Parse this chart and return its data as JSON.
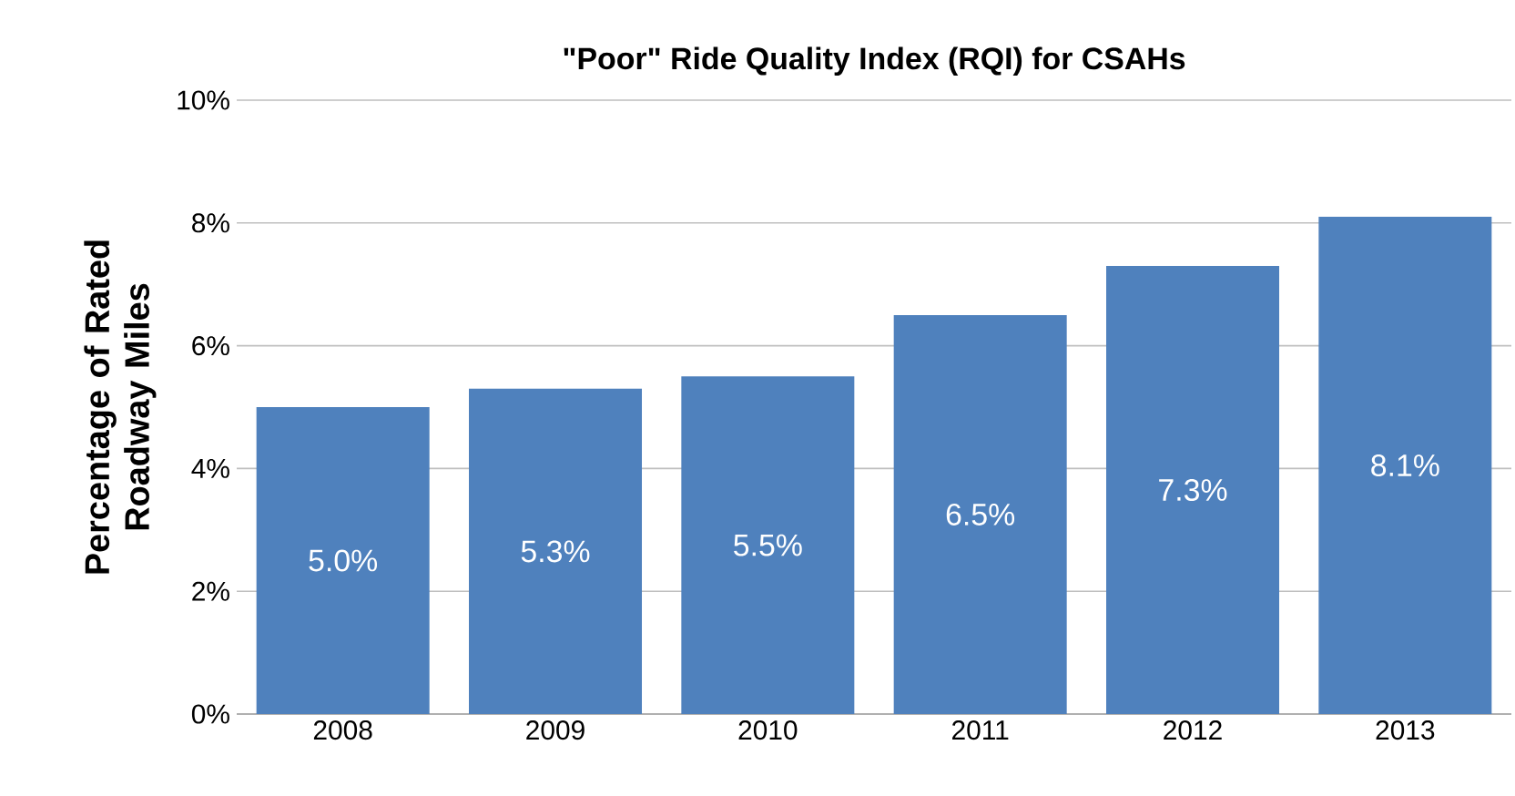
{
  "chart_data": {
    "type": "bar",
    "title": "\"Poor\" Ride Quality Index (RQI) for CSAHs",
    "ylabel": "Percentage of Rated Roadway Miles",
    "categories": [
      "2008",
      "2009",
      "2010",
      "2011",
      "2012",
      "2013"
    ],
    "values": [
      5.0,
      5.3,
      5.5,
      6.5,
      7.3,
      8.1
    ],
    "value_labels": [
      "5.0%",
      "5.3%",
      "5.5%",
      "6.5%",
      "7.3%",
      "8.1%"
    ],
    "color": "#4f81bd",
    "ylim": [
      0,
      10
    ],
    "yticks": [
      {
        "value": 0,
        "label": "0%"
      },
      {
        "value": 2,
        "label": "2%"
      },
      {
        "value": 4,
        "label": "4%"
      },
      {
        "value": 6,
        "label": "6%"
      },
      {
        "value": 8,
        "label": "8%"
      },
      {
        "value": 10,
        "label": "10%"
      }
    ],
    "grid": "y"
  }
}
